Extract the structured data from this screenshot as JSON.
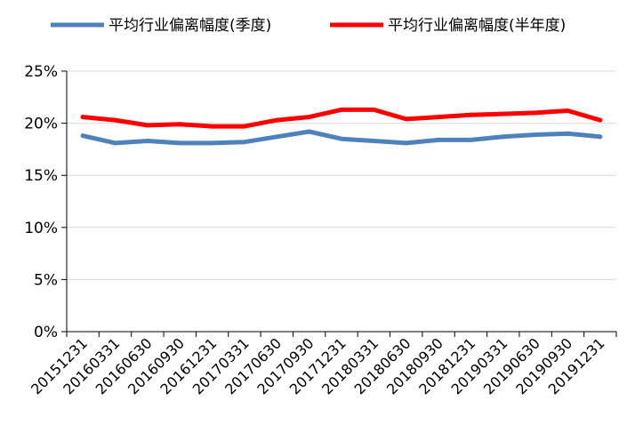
{
  "chart_data": {
    "type": "line",
    "categories": [
      "20151231",
      "20160331",
      "20160630",
      "20160930",
      "20161231",
      "20170331",
      "20170630",
      "20170930",
      "20171231",
      "20180331",
      "20180630",
      "20180930",
      "20181231",
      "20190331",
      "20190630",
      "20190930",
      "20191231"
    ],
    "series": [
      {
        "name": "平均行业偏离幅度(季度)",
        "color": "#4F81BD",
        "values": [
          18.8,
          18.1,
          18.3,
          18.1,
          18.1,
          18.2,
          18.7,
          19.2,
          18.5,
          18.3,
          18.1,
          18.4,
          18.4,
          18.7,
          18.9,
          19.0,
          18.7
        ]
      },
      {
        "name": "平均行业偏离幅度(半年度)",
        "color": "#FF0000",
        "values": [
          20.6,
          20.3,
          19.8,
          19.9,
          19.7,
          19.7,
          20.3,
          20.6,
          21.3,
          21.3,
          20.4,
          20.6,
          20.8,
          20.9,
          21.0,
          21.2,
          20.3
        ]
      }
    ],
    "yticks": [
      "0%",
      "5%",
      "10%",
      "15%",
      "20%",
      "25%"
    ],
    "ylim": [
      0,
      25
    ],
    "y_unit": "%",
    "xlabel": "",
    "ylabel": "",
    "legend_position": "top",
    "grid": "horizontal"
  }
}
